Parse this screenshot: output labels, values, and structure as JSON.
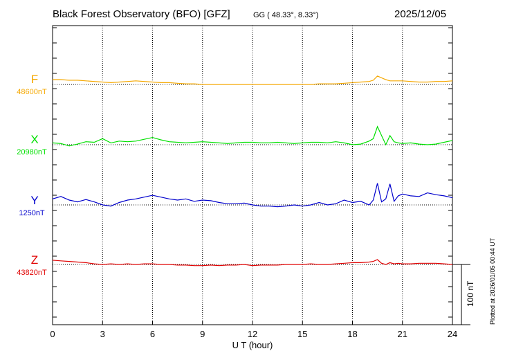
{
  "header": {
    "title": "Black Forest Observatory (BFO)  [GFZ]",
    "coords": "GG ( 48.33°,   8.33°)",
    "date": "2025/12/05"
  },
  "footer": {
    "plotted": "Plotted at 2026/01/05 00:44 UT"
  },
  "colors": {
    "F": "#f5a800",
    "X": "#00e000",
    "Y": "#0000cc",
    "Z": "#e00000"
  },
  "chart_data": {
    "type": "line",
    "title": "Black Forest Observatory (BFO)  [GFZ]",
    "xlabel": "U T (hour)",
    "ylabel": "",
    "xlim": [
      0,
      24
    ],
    "x_ticks": [
      0,
      3,
      6,
      9,
      12,
      15,
      18,
      21,
      24
    ],
    "x_tick_labels": [
      "0",
      "3",
      "6",
      "9",
      "12",
      "15",
      "18",
      "21",
      "24"
    ],
    "grid": true,
    "scale_bar": {
      "value": 100,
      "label": "100 nT"
    },
    "x": [
      0,
      0.5,
      1,
      1.5,
      2,
      2.5,
      3,
      3.5,
      4,
      4.5,
      5,
      5.5,
      6,
      6.5,
      7,
      7.5,
      8,
      8.5,
      9,
      9.5,
      10,
      10.5,
      11,
      11.5,
      12,
      12.5,
      13,
      13.5,
      14,
      14.5,
      15,
      15.5,
      16,
      16.5,
      17,
      17.5,
      18,
      18.5,
      19,
      19.25,
      19.5,
      19.75,
      20,
      20.25,
      20.5,
      20.75,
      21,
      21.5,
      22,
      22.5,
      23,
      23.5,
      24
    ],
    "series": [
      {
        "name": "F",
        "baseline_label": "48600nT",
        "baseline_nT": 48600,
        "values": [
          8,
          8,
          7,
          7,
          6,
          5,
          4,
          3,
          4,
          5,
          6,
          5,
          4,
          3,
          3,
          2,
          1,
          1,
          0,
          0,
          0,
          0,
          0,
          0,
          0,
          0,
          0,
          0,
          0,
          0,
          0,
          0,
          1,
          1,
          1,
          2,
          3,
          4,
          5,
          7,
          14,
          11,
          8,
          6,
          6,
          6,
          6,
          5,
          4,
          4,
          5,
          5,
          6
        ]
      },
      {
        "name": "X",
        "baseline_label": "20980nT",
        "baseline_nT": 20980,
        "values": [
          3,
          2,
          -2,
          1,
          5,
          4,
          10,
          3,
          6,
          5,
          6,
          9,
          12,
          8,
          5,
          4,
          3,
          4,
          5,
          4,
          3,
          2,
          3,
          4,
          4,
          3,
          3,
          4,
          3,
          2,
          3,
          4,
          4,
          3,
          5,
          3,
          0,
          1,
          6,
          10,
          30,
          15,
          0,
          15,
          5,
          3,
          2,
          3,
          1,
          0,
          1,
          4,
          7
        ]
      },
      {
        "name": "Y",
        "baseline_label": "1250nT",
        "baseline_nT": 1250,
        "values": [
          10,
          14,
          8,
          5,
          9,
          5,
          0,
          -2,
          4,
          8,
          10,
          13,
          16,
          13,
          10,
          8,
          10,
          6,
          8,
          7,
          4,
          2,
          2,
          3,
          0,
          -2,
          -2,
          -3,
          -2,
          0,
          -2,
          0,
          4,
          0,
          2,
          8,
          4,
          6,
          0,
          8,
          36,
          5,
          10,
          35,
          6,
          15,
          18,
          15,
          14,
          20,
          17,
          15,
          12
        ]
      },
      {
        "name": "Z",
        "baseline_label": "43820nT",
        "baseline_nT": 43820,
        "values": [
          7,
          6,
          5,
          4,
          3,
          1,
          0,
          1,
          0,
          1,
          0,
          1,
          1,
          0,
          0,
          -1,
          -1,
          -2,
          -2,
          -1,
          -2,
          -1,
          -1,
          0,
          -2,
          -1,
          -1,
          -1,
          0,
          0,
          0,
          1,
          0,
          0,
          1,
          2,
          3,
          3,
          4,
          5,
          8,
          2,
          0,
          3,
          1,
          2,
          1,
          1,
          2,
          2,
          2,
          1,
          0
        ]
      }
    ]
  }
}
